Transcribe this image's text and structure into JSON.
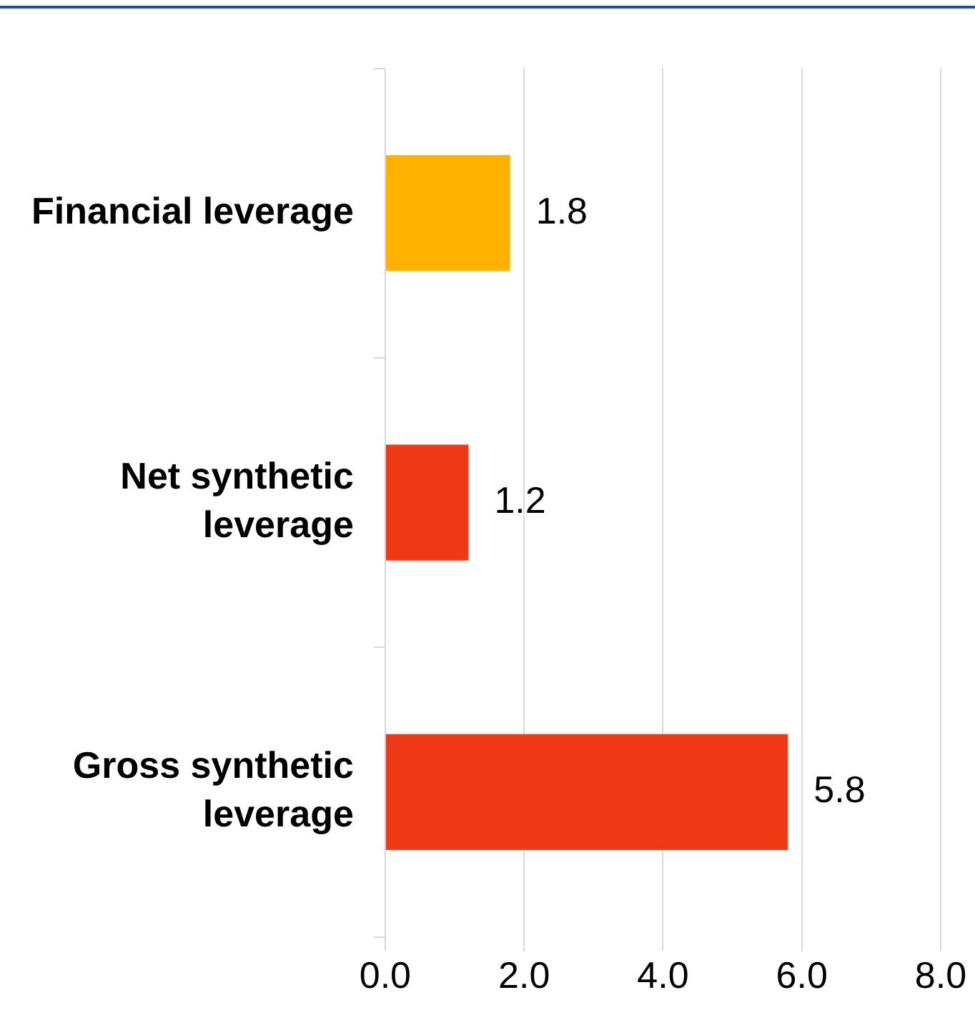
{
  "chart_data": {
    "type": "bar",
    "orientation": "horizontal",
    "categories": [
      "Financial leverage",
      "Net synthetic leverage",
      "Gross synthetic leverage"
    ],
    "values": [
      1.8,
      1.2,
      5.8
    ],
    "colors": [
      "#ffb300",
      "#f03a17",
      "#f03a17"
    ],
    "xlim": [
      0,
      8
    ],
    "xticks": [
      {
        "value": 0,
        "label": "0.0"
      },
      {
        "value": 2,
        "label": "2.0"
      },
      {
        "value": 4,
        "label": "4.0"
      },
      {
        "value": 6,
        "label": "6.0"
      },
      {
        "value": 8,
        "label": "8.0"
      }
    ],
    "grid": "x",
    "data_labels": true
  }
}
